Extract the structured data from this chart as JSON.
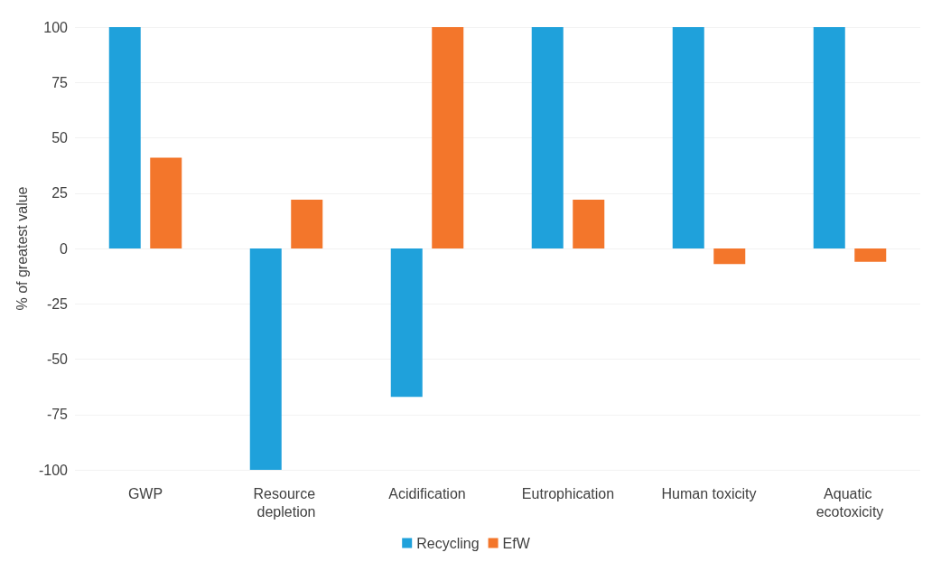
{
  "chart_data": {
    "type": "bar",
    "ylabel": "% of greatest value",
    "categories": [
      "GWP",
      "Resource depletion",
      "Acidification",
      "Eutrophication",
      "Human toxicity",
      "Aquatic ecotoxicity"
    ],
    "series": [
      {
        "name": "Recycling",
        "color": "#1fa1db",
        "values": [
          100,
          -100,
          -67,
          100,
          100,
          100
        ]
      },
      {
        "name": "EfW",
        "color": "#f3762b",
        "values": [
          41,
          22,
          100,
          22,
          -7,
          -6
        ]
      }
    ],
    "ylim": [
      -100,
      100
    ],
    "yticks": [
      -100,
      -75,
      -50,
      -25,
      0,
      25,
      50,
      75,
      100
    ],
    "grid": "y",
    "legend": "bottom"
  }
}
